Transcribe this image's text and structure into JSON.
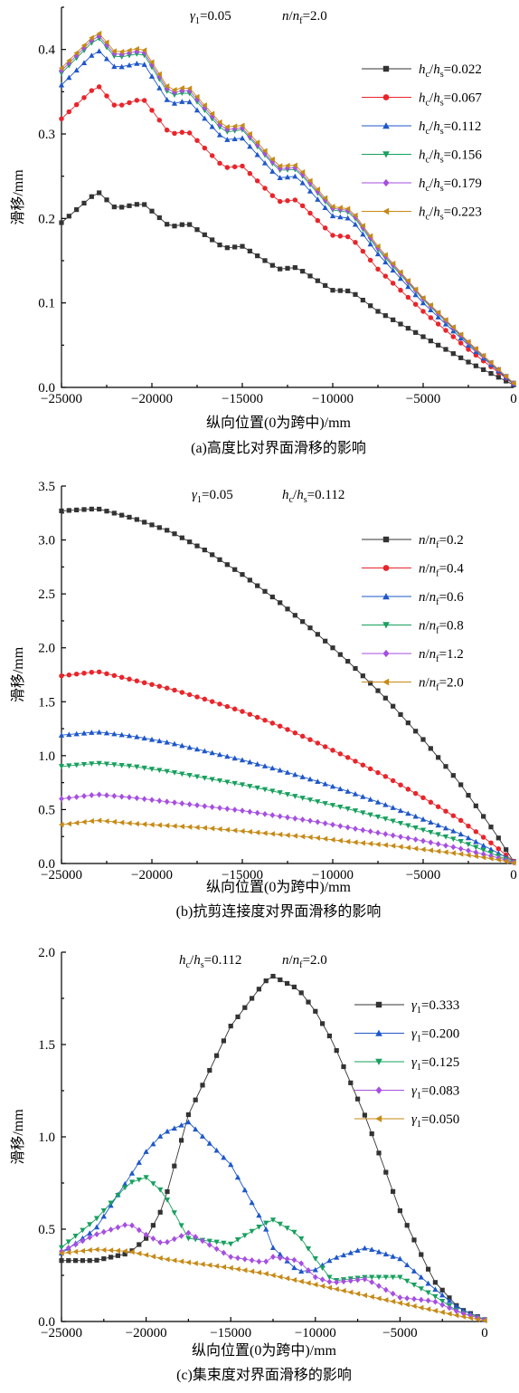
{
  "chart_data": [
    {
      "type": "line",
      "panel": "a",
      "annotation": [
        "γ1=0.05",
        "n/nf=2.0"
      ],
      "caption": "(a)高度比对界面滑移的影响",
      "xlabel": "纵向位置(0为跨中)/mm",
      "ylabel": "滑移/mm",
      "xlim": [
        -25000,
        0
      ],
      "ylim": [
        0,
        0.45
      ],
      "xticks": [
        "−25000",
        "−20000",
        "−15000",
        "−10000",
        "−5000",
        "0"
      ],
      "yticks": [
        "0.0",
        "0.1",
        "0.2",
        "0.3",
        "0.4"
      ],
      "legend_position": "right",
      "x": [
        -25000,
        -23000,
        -22000,
        -20500,
        -19000,
        -18000,
        -16000,
        -15000,
        -13000,
        -12000,
        -10000,
        -9000,
        -7500,
        -5000,
        -2500,
        0
      ],
      "series": [
        {
          "name": "hc/hs=0.022",
          "color": "#333333",
          "marker": "square",
          "values": [
            0.195,
            0.232,
            0.212,
            0.218,
            0.19,
            0.194,
            0.165,
            0.167,
            0.14,
            0.142,
            0.115,
            0.114,
            0.09,
            0.06,
            0.03,
            0.003
          ]
        },
        {
          "name": "hc/hs=0.067",
          "color": "#e8252b",
          "marker": "circle",
          "values": [
            0.318,
            0.358,
            0.332,
            0.342,
            0.3,
            0.303,
            0.26,
            0.262,
            0.22,
            0.222,
            0.18,
            0.178,
            0.14,
            0.09,
            0.045,
            0.004
          ]
        },
        {
          "name": "hc/hs=0.112",
          "color": "#1e57c9",
          "marker": "triangle-up",
          "values": [
            0.358,
            0.4,
            0.378,
            0.385,
            0.335,
            0.34,
            0.293,
            0.295,
            0.248,
            0.25,
            0.203,
            0.2,
            0.158,
            0.1,
            0.05,
            0.004
          ]
        },
        {
          "name": "hc/hs=0.156",
          "color": "#17a05e",
          "marker": "triangle-down",
          "values": [
            0.372,
            0.415,
            0.39,
            0.396,
            0.345,
            0.35,
            0.302,
            0.305,
            0.257,
            0.258,
            0.21,
            0.207,
            0.163,
            0.104,
            0.052,
            0.005
          ]
        },
        {
          "name": "hc/hs=0.179",
          "color": "#a64fe0",
          "marker": "diamond",
          "values": [
            0.375,
            0.418,
            0.393,
            0.399,
            0.348,
            0.353,
            0.305,
            0.307,
            0.259,
            0.26,
            0.212,
            0.209,
            0.165,
            0.105,
            0.053,
            0.005
          ]
        },
        {
          "name": "hc/hs=0.223",
          "color": "#c68a16",
          "marker": "triangle-left",
          "values": [
            0.378,
            0.421,
            0.396,
            0.402,
            0.351,
            0.356,
            0.308,
            0.31,
            0.262,
            0.263,
            0.214,
            0.211,
            0.167,
            0.106,
            0.054,
            0.005
          ]
        }
      ]
    },
    {
      "type": "line",
      "panel": "b",
      "annotation": [
        "γ1=0.05",
        "hc/hs=0.112"
      ],
      "caption": "(b)抗剪连接度对界面滑移的影响",
      "xlabel": "纵向位置(0为跨中)/mm",
      "ylabel": "滑移/mm",
      "xlim": [
        -25000,
        0
      ],
      "ylim": [
        0,
        3.5
      ],
      "xticks": [
        "−25000",
        "−20000",
        "−15000",
        "−10000",
        "−5000",
        "0"
      ],
      "yticks": [
        "0.0",
        "0.5",
        "1.0",
        "1.5",
        "2.0",
        "2.5",
        "3.0",
        "3.5"
      ],
      "legend_position": "right",
      "x": [
        -25000,
        -23000,
        -21000,
        -19000,
        -17000,
        -15000,
        -13000,
        -11000,
        -9000,
        -7000,
        -5000,
        -3000,
        -1000,
        0
      ],
      "series": [
        {
          "name": "n/nf=0.2",
          "color": "#333333",
          "marker": "square",
          "values": [
            3.27,
            3.29,
            3.2,
            3.08,
            2.9,
            2.68,
            2.43,
            2.15,
            1.85,
            1.52,
            1.15,
            0.75,
            0.28,
            0.02
          ]
        },
        {
          "name": "n/nf=0.4",
          "color": "#e8252b",
          "marker": "circle",
          "values": [
            1.74,
            1.78,
            1.7,
            1.62,
            1.52,
            1.41,
            1.28,
            1.13,
            0.97,
            0.8,
            0.61,
            0.41,
            0.16,
            0.02
          ]
        },
        {
          "name": "n/nf=0.6",
          "color": "#1e57c9",
          "marker": "triangle-up",
          "values": [
            1.19,
            1.22,
            1.18,
            1.12,
            1.04,
            0.96,
            0.87,
            0.77,
            0.66,
            0.54,
            0.41,
            0.28,
            0.11,
            0.02
          ]
        },
        {
          "name": "n/nf=0.8",
          "color": "#17a05e",
          "marker": "triangle-down",
          "values": [
            0.9,
            0.93,
            0.9,
            0.85,
            0.79,
            0.73,
            0.66,
            0.58,
            0.5,
            0.41,
            0.31,
            0.21,
            0.08,
            0.01
          ]
        },
        {
          "name": "n/nf=1.2",
          "color": "#a64fe0",
          "marker": "diamond",
          "values": [
            0.6,
            0.64,
            0.61,
            0.57,
            0.53,
            0.49,
            0.44,
            0.39,
            0.33,
            0.27,
            0.21,
            0.14,
            0.06,
            0.01
          ]
        },
        {
          "name": "n/nf=2.0",
          "color": "#c68a16",
          "marker": "triangle-left",
          "values": [
            0.36,
            0.4,
            0.37,
            0.35,
            0.33,
            0.3,
            0.27,
            0.24,
            0.2,
            0.17,
            0.13,
            0.09,
            0.04,
            0.005
          ]
        }
      ]
    },
    {
      "type": "line",
      "panel": "c",
      "annotation": [
        "hc/hs=0.112",
        "n/nf=2.0"
      ],
      "caption": "(c)集束度对界面滑移的影响",
      "xlabel": "纵向位置(0为跨中)/mm",
      "ylabel": "滑移/mm",
      "xlim": [
        -25000,
        0
      ],
      "ylim": [
        0,
        2.0
      ],
      "xticks": [
        "−25000",
        "−20000",
        "−15000",
        "−10000",
        "−5000",
        "0"
      ],
      "yticks": [
        "0.0",
        "0.5",
        "1.0",
        "1.5",
        "2.0"
      ],
      "legend_position": "right",
      "x": [
        -25000,
        -23000,
        -21000,
        -20000,
        -19000,
        -17500,
        -15000,
        -13000,
        -12500,
        -11000,
        -10000,
        -9000,
        -7000,
        -5000,
        -3000,
        -1500,
        0
      ],
      "series": [
        {
          "name": "γ1=0.333",
          "color": "#333333",
          "marker": "square",
          "values": [
            0.33,
            0.33,
            0.37,
            0.45,
            0.62,
            1.12,
            1.6,
            1.84,
            1.87,
            1.8,
            1.68,
            1.52,
            1.1,
            0.6,
            0.22,
            0.07,
            0.01
          ]
        },
        {
          "name": "γ1=0.200",
          "color": "#1e57c9",
          "marker": "triangle-up",
          "values": [
            0.37,
            0.5,
            0.78,
            0.92,
            1.02,
            1.08,
            0.85,
            0.52,
            0.4,
            0.27,
            0.28,
            0.34,
            0.4,
            0.34,
            0.18,
            0.07,
            0.01
          ]
        },
        {
          "name": "γ1=0.125",
          "color": "#17a05e",
          "marker": "triangle-down",
          "values": [
            0.4,
            0.55,
            0.75,
            0.78,
            0.7,
            0.45,
            0.42,
            0.53,
            0.55,
            0.47,
            0.34,
            0.22,
            0.24,
            0.24,
            0.14,
            0.05,
            0.01
          ]
        },
        {
          "name": "γ1=0.083",
          "color": "#a64fe0",
          "marker": "diamond",
          "values": [
            0.38,
            0.47,
            0.53,
            0.47,
            0.42,
            0.48,
            0.35,
            0.32,
            0.35,
            0.33,
            0.24,
            0.21,
            0.23,
            0.13,
            0.11,
            0.05,
            0.01
          ]
        },
        {
          "name": "γ1=0.050",
          "color": "#c68a16",
          "marker": "triangle-left",
          "values": [
            0.37,
            0.39,
            0.38,
            0.36,
            0.34,
            0.32,
            0.29,
            0.26,
            0.25,
            0.22,
            0.2,
            0.18,
            0.14,
            0.1,
            0.06,
            0.03,
            0.005
          ]
        }
      ]
    }
  ]
}
